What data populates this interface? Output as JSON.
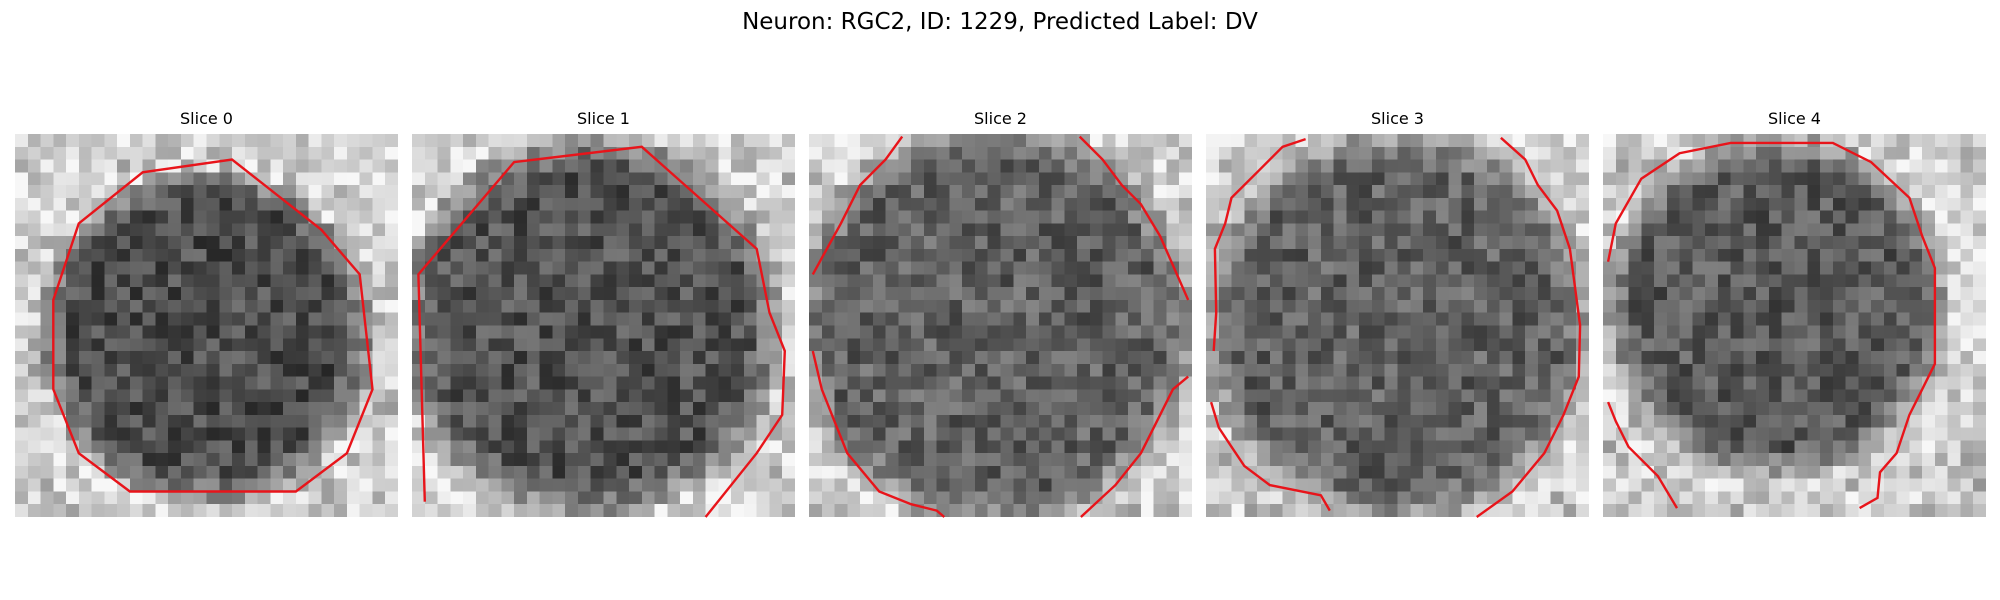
{
  "figure": {
    "title": "Neuron: RGC2, ID: 1229, Predicted Label: DV"
  },
  "panels": [
    {
      "title": "Slice 0",
      "contour_color": "#e8141a"
    },
    {
      "title": "Slice 1",
      "contour_color": "#e8141a"
    },
    {
      "title": "Slice 2",
      "contour_color": "#e8141a"
    },
    {
      "title": "Slice 3",
      "contour_color": "#e8141a"
    },
    {
      "title": "Slice 4",
      "contour_color": "#e8141a"
    }
  ]
}
